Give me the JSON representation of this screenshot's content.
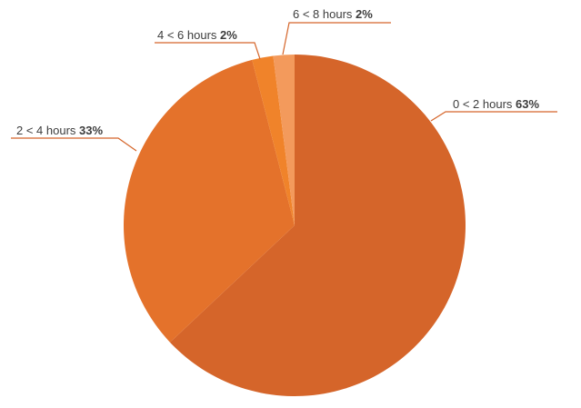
{
  "chart_data": {
    "type": "pie",
    "title": "",
    "categories": [
      "0 < 2 hours",
      "2 < 4 hours",
      "4 < 6 hours",
      "6 < 8 hours"
    ],
    "values": [
      63,
      33,
      2,
      2
    ],
    "value_labels": [
      "63%",
      "33%",
      "2%",
      "2%"
    ],
    "colors": [
      "#d5652a",
      "#e4722b",
      "#f0832a",
      "#f39a5c"
    ],
    "leader_line_color": "#d5652a",
    "legend": "none"
  }
}
